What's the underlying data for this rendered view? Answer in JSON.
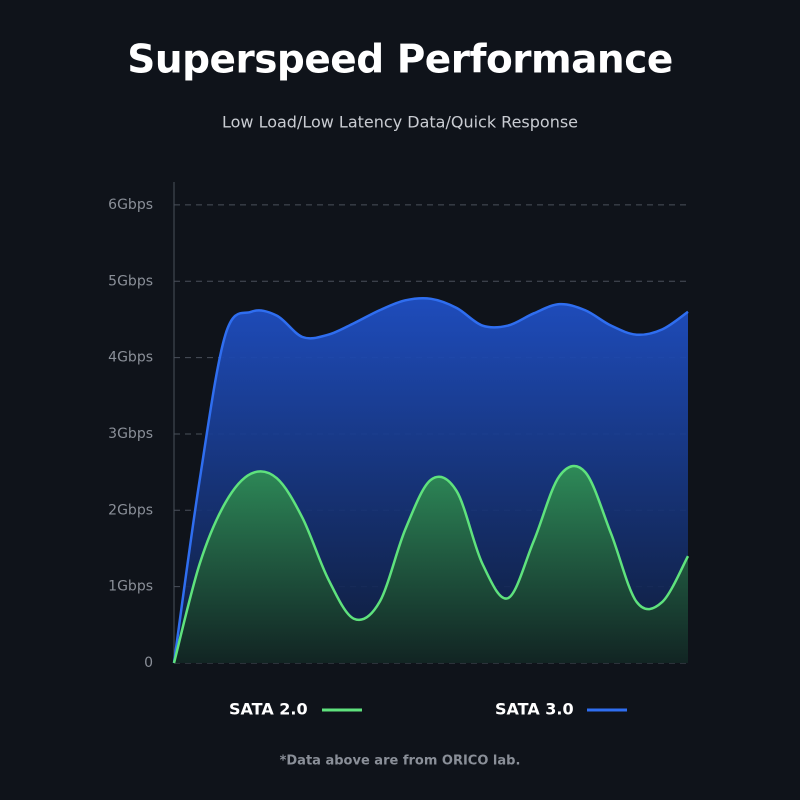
{
  "chart_data": {
    "type": "area",
    "title": "Superspeed Performance",
    "subtitle": "Low Load/Low Latency Data/Quick Response",
    "footnote": "*Data above are from ORICO lab.",
    "categories": [
      null,
      null,
      null,
      null,
      null,
      null,
      null,
      null,
      null,
      null,
      null,
      null,
      null,
      null,
      null,
      null,
      null,
      null,
      null,
      null,
      null
    ],
    "series": [
      {
        "name": "SATA 2.0",
        "color": "#5fe27d",
        "values": [
          0,
          1.3,
          2.1,
          2.48,
          2.42,
          1.9,
          1.1,
          0.58,
          0.8,
          1.75,
          2.4,
          2.25,
          1.3,
          0.85,
          1.6,
          2.45,
          2.5,
          1.7,
          0.8,
          0.8,
          1.4
        ]
      },
      {
        "name": "SATA 3.0",
        "color": "#2f6ef0",
        "values": [
          0,
          2.4,
          4.3,
          4.6,
          4.55,
          4.27,
          4.3,
          4.45,
          4.62,
          4.75,
          4.77,
          4.65,
          4.42,
          4.42,
          4.58,
          4.7,
          4.62,
          4.42,
          4.3,
          4.37,
          4.6
        ]
      }
    ],
    "ylim": [
      0,
      6.3
    ],
    "yticks": [
      0,
      {
        "value": 1,
        "label": "1Gbps"
      },
      {
        "value": 2,
        "label": "2Gbps"
      },
      {
        "value": 3,
        "label": "3Gbps"
      },
      {
        "value": 4,
        "label": "4Gbps"
      },
      {
        "value": 5,
        "label": "5Gbps"
      },
      {
        "value": 6,
        "label": "6Gbps"
      }
    ],
    "grid": true
  }
}
